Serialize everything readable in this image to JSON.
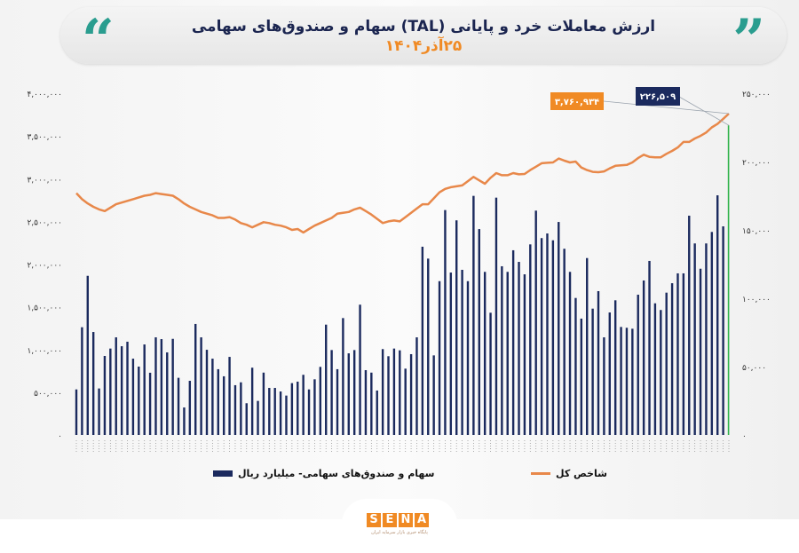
{
  "header": {
    "title": "ارزش معاملات خرد و پایانی (TAL) سهام و صندوق‌های سهامی",
    "date": "۲۵آذر۱۴۰۴",
    "quote_left": "“",
    "quote_right": "”"
  },
  "colors": {
    "bars": "#1b2a5e",
    "last_bar": "#2fb34a",
    "line": "#e8884a",
    "accent_orange": "#f08a24",
    "quote": "#2a9d8f",
    "title": "#1b2550"
  },
  "chart_data": {
    "type": "bar+line",
    "title": "ارزش معاملات خرد و پایانی (TAL) سهام و صندوق‌های سهامی",
    "grid": false,
    "legend_position": "bottom",
    "left_axis": {
      "series": "line",
      "ylim": [
        0,
        4000000
      ],
      "ticks": [
        "۰",
        "۵۰۰,۰۰۰",
        "۱,۰۰۰,۰۰۰",
        "۱,۵۰۰,۰۰۰",
        "۲,۰۰۰,۰۰۰",
        "۲,۵۰۰,۰۰۰",
        "۳,۰۰۰,۰۰۰",
        "۳,۵۰۰,۰۰۰",
        "۴,۰۰۰,۰۰۰"
      ]
    },
    "right_axis": {
      "series": "bars",
      "ylim": [
        0,
        250000
      ],
      "ticks": [
        "۰",
        "۵۰,۰۰۰",
        "۱۰۰,۰۰۰",
        "۱۵۰,۰۰۰",
        "۲۰۰,۰۰۰",
        "۲۵۰,۰۰۰"
      ]
    },
    "series": [
      {
        "name": "سهام و صندوق‌های سهامی- میلیارد ریال",
        "type": "bar",
        "axis": "right",
        "values": [
          33300,
          78800,
          116400,
          75300,
          34000,
          57800,
          63200,
          71400,
          64900,
          68200,
          55800,
          50000,
          66200,
          45500,
          71400,
          70100,
          60400,
          70300,
          41800,
          20100,
          39600,
          81200,
          71400,
          62300,
          55800,
          48100,
          42900,
          57100,
          36400,
          38500,
          23200,
          49200,
          24900,
          45600,
          34400,
          34400,
          31800,
          28800,
          37900,
          39000,
          44000,
          33300,
          40700,
          49800,
          80700,
          62100,
          48100,
          85500,
          59700,
          62100,
          95300,
          47400,
          45600,
          32500,
          62800,
          57600,
          63200,
          61900,
          48500,
          59100,
          71400,
          137700,
          129000,
          58200,
          112500,
          164500,
          118800,
          157000,
          120800,
          112500,
          174900,
          150600,
          119300,
          89400,
          173600,
          123400,
          119300,
          135100,
          126600,
          117500,
          139400,
          164100,
          144000,
          147400,
          142400,
          155800,
          136200,
          119300,
          100200,
          85100,
          129400,
          92400,
          105200,
          71400,
          89600,
          98500,
          79000,
          78400,
          77700,
          102600,
          113000,
          127300,
          96300,
          91400,
          104100,
          111000,
          118200,
          118200,
          160400,
          140100,
          121600,
          140100,
          148500,
          175300,
          152600,
          226509
        ]
      },
      {
        "name": "شاخص کل",
        "type": "line",
        "axis": "left",
        "values": [
          2830000,
          2760000,
          2710000,
          2670000,
          2640000,
          2620000,
          2660000,
          2700000,
          2720000,
          2740000,
          2760000,
          2780000,
          2800000,
          2810000,
          2830000,
          2820000,
          2810000,
          2800000,
          2760000,
          2710000,
          2670000,
          2640000,
          2610000,
          2590000,
          2570000,
          2540000,
          2540000,
          2550000,
          2520000,
          2480000,
          2460000,
          2430000,
          2460000,
          2490000,
          2480000,
          2460000,
          2450000,
          2430000,
          2400000,
          2410000,
          2370000,
          2410000,
          2450000,
          2480000,
          2510000,
          2540000,
          2590000,
          2600000,
          2610000,
          2640000,
          2660000,
          2620000,
          2580000,
          2530000,
          2480000,
          2500000,
          2510000,
          2500000,
          2550000,
          2600000,
          2650000,
          2700000,
          2700000,
          2770000,
          2840000,
          2880000,
          2900000,
          2910000,
          2920000,
          2970000,
          3020000,
          2980000,
          2940000,
          3010000,
          3065000,
          3040000,
          3040000,
          3065000,
          3050000,
          3055000,
          3100000,
          3140000,
          3180000,
          3185000,
          3190000,
          3235000,
          3210000,
          3190000,
          3200000,
          3130000,
          3100000,
          3080000,
          3075000,
          3085000,
          3120000,
          3150000,
          3155000,
          3160000,
          3190000,
          3240000,
          3280000,
          3255000,
          3250000,
          3250000,
          3290000,
          3325000,
          3365000,
          3430000,
          3430000,
          3470000,
          3500000,
          3540000,
          3600000,
          3640000,
          3700000,
          3760934
        ]
      }
    ],
    "annotations": {
      "line_last": "۳,۷۶۰,۹۳۴",
      "bar_last": "۲۲۶,۵۰۹"
    }
  },
  "legend": {
    "bars": "سهام و صندوق‌های سهامی- میلیارد ریال",
    "line": "شاخص کل"
  },
  "footer": {
    "logo": [
      "S",
      "E",
      "N",
      "A"
    ],
    "logo_sub": "پایگاه خبری بازار سرمایه ایران"
  }
}
